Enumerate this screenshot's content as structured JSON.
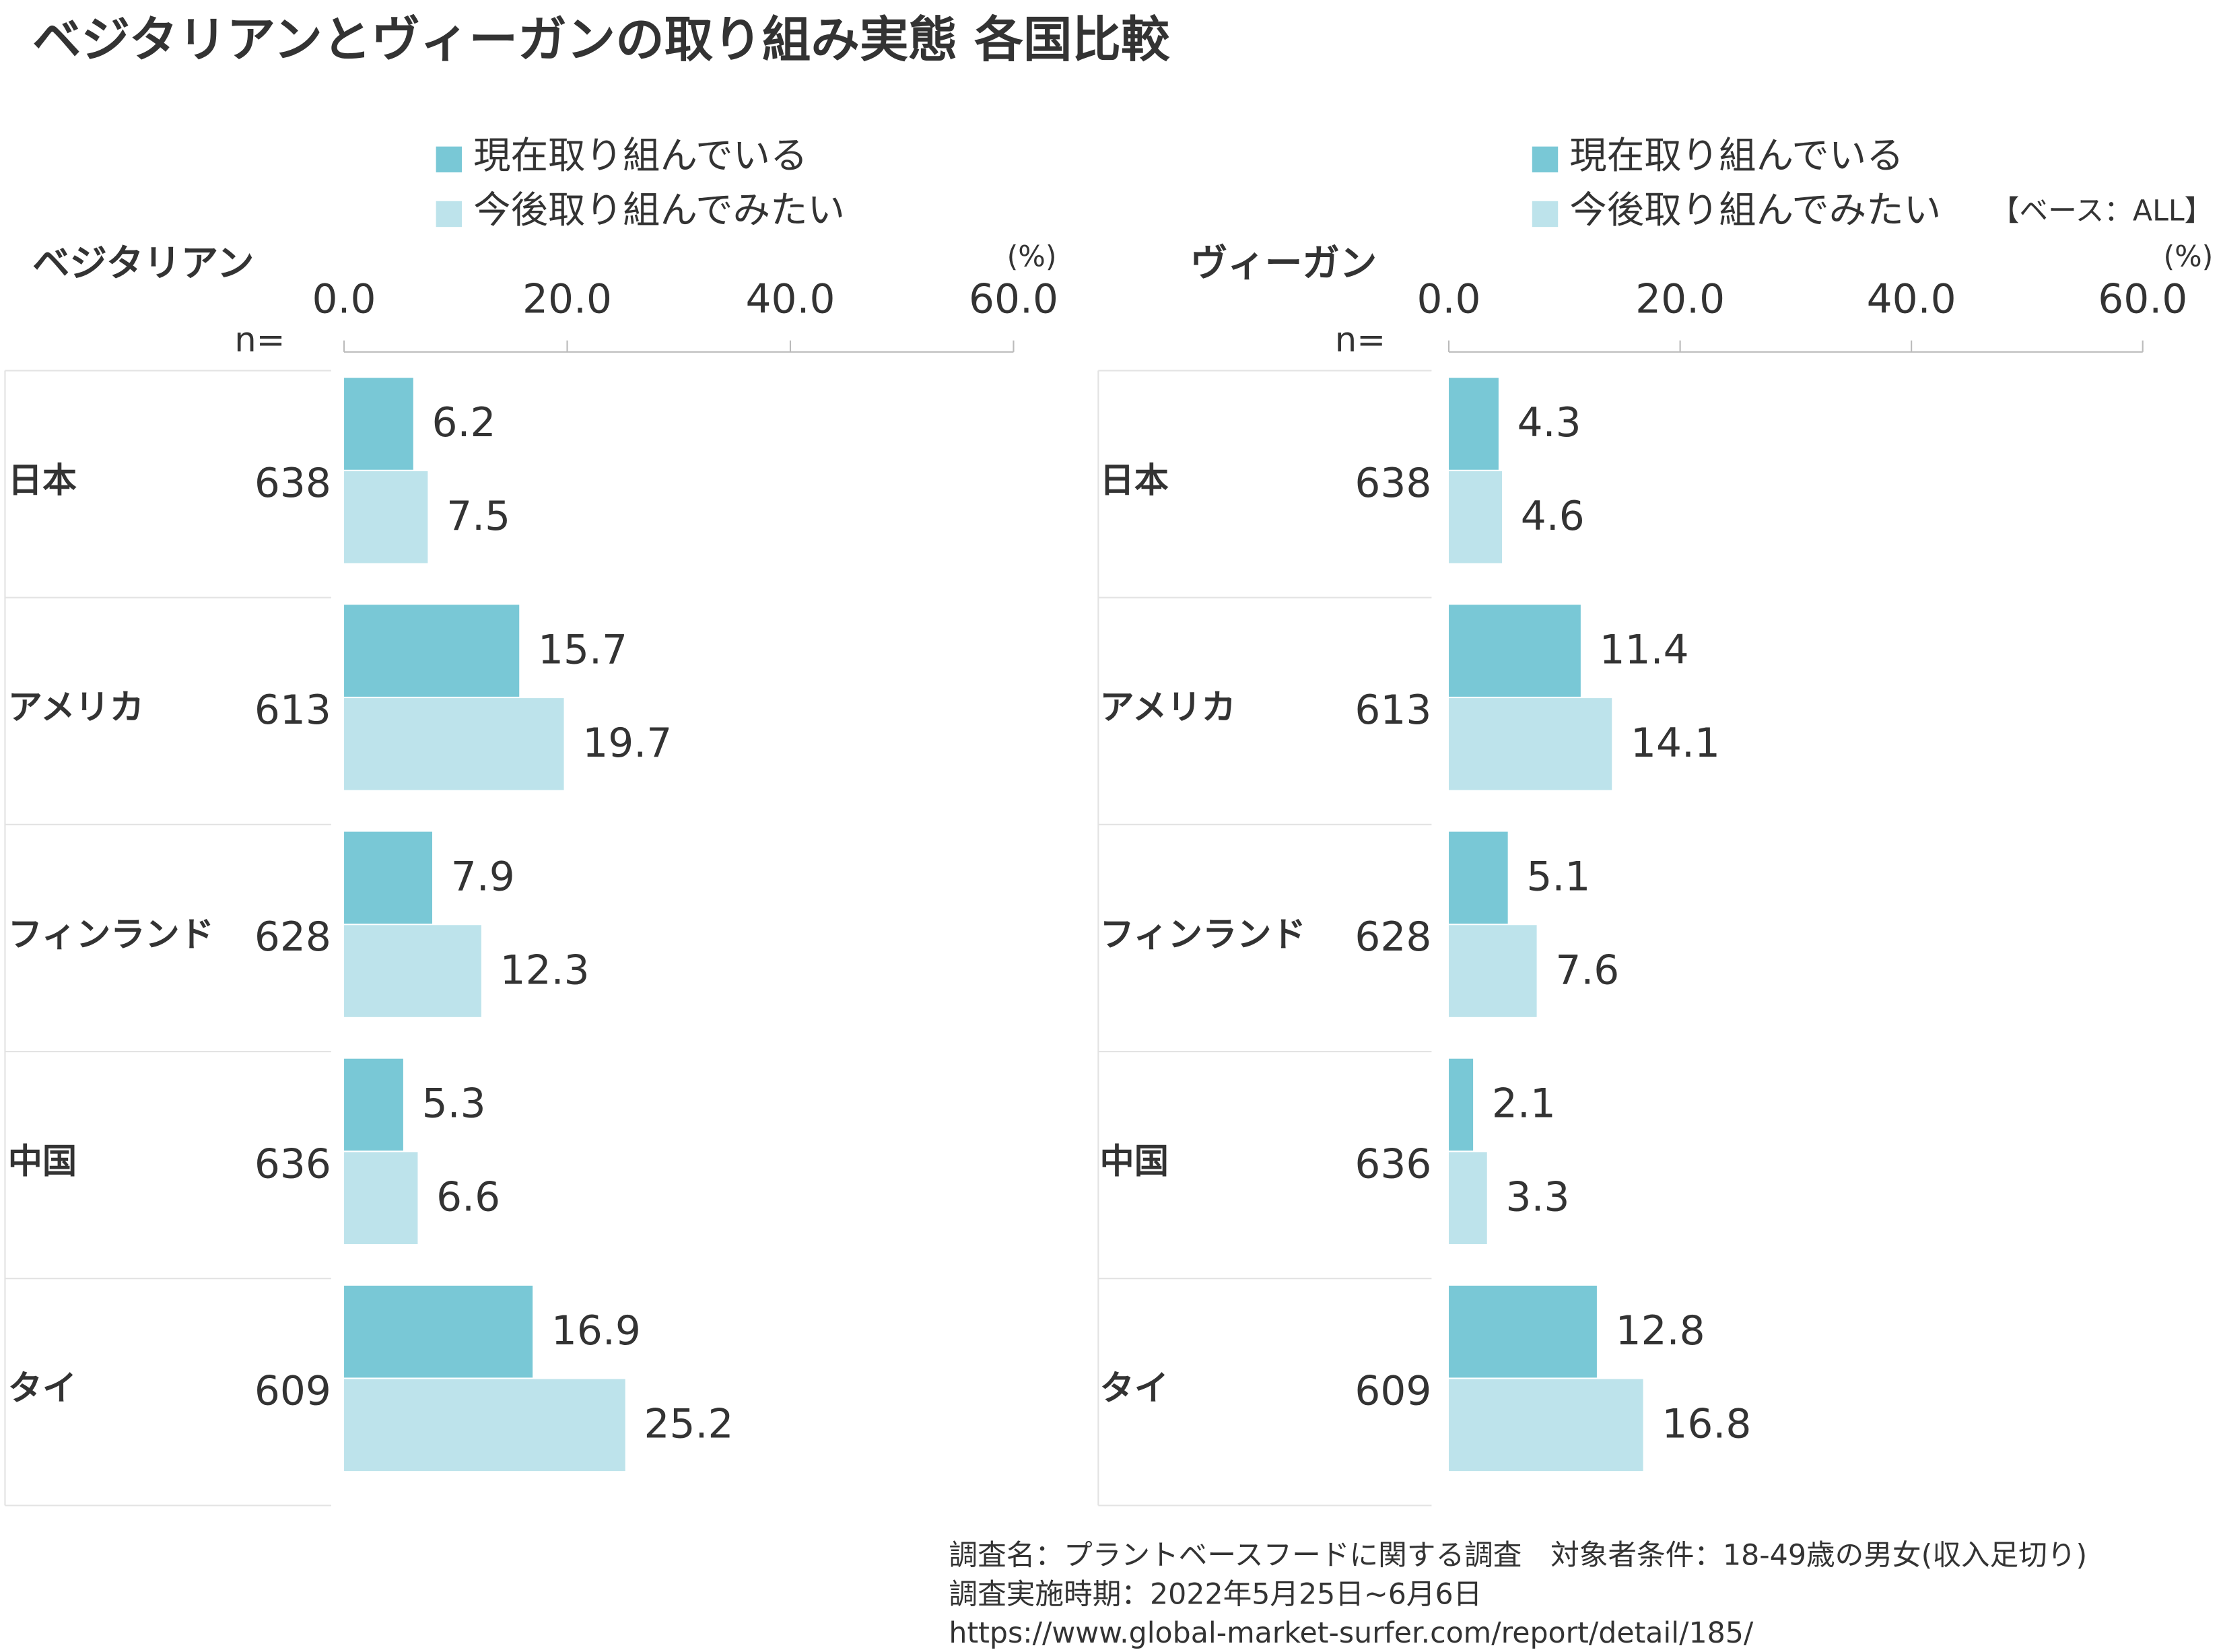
{
  "title": "ベジタリアンとヴィーガンの取り組み実態 各国比較",
  "base_note": "【ベース：ALL】",
  "notes": [
    "調査名：プラントベースフードに関する調査　対象者条件：18-49歳の男女(収入足切り)",
    "調査実施時期：2022年5月25日~6月6日",
    "https://www.global-market-surfer.com/report/detail/185/"
  ],
  "chart_data": [
    {
      "type": "bar",
      "title": "ベジタリアン",
      "unit": "(%)",
      "n_label": "n=",
      "categories": [
        "日本",
        "アメリカ",
        "フィンランド",
        "中国",
        "タイ"
      ],
      "n": [
        638,
        613,
        628,
        636,
        609
      ],
      "series": [
        {
          "name": "現在取り組んでいる",
          "color": "#79c8d6",
          "values": [
            6.2,
            15.7,
            7.9,
            5.3,
            16.9
          ]
        },
        {
          "name": "今後取り組んでみたい",
          "color": "#bde3eb",
          "values": [
            7.5,
            19.7,
            12.3,
            6.6,
            25.2
          ]
        }
      ],
      "xlim": [
        0,
        60
      ],
      "xticks": [
        {
          "value": 0,
          "label": "0.0"
        },
        {
          "value": 20,
          "label": "20.0"
        },
        {
          "value": 40,
          "label": "40.0"
        },
        {
          "value": 60,
          "label": "60.0"
        }
      ]
    },
    {
      "type": "bar",
      "title": "ヴィーガン",
      "unit": "(%)",
      "n_label": "n=",
      "categories": [
        "日本",
        "アメリカ",
        "フィンランド",
        "中国",
        "タイ"
      ],
      "n": [
        638,
        613,
        628,
        636,
        609
      ],
      "series": [
        {
          "name": "現在取り組んでいる",
          "color": "#79c8d6",
          "values": [
            4.3,
            11.4,
            5.1,
            2.1,
            12.8
          ]
        },
        {
          "name": "今後取り組んでみたい",
          "color": "#bde3eb",
          "values": [
            4.6,
            14.1,
            7.6,
            3.3,
            16.8
          ]
        }
      ],
      "xlim": [
        0,
        60
      ],
      "xticks": [
        {
          "value": 0,
          "label": "0.0"
        },
        {
          "value": 20,
          "label": "20.0"
        },
        {
          "value": 40,
          "label": "40.0"
        },
        {
          "value": 60,
          "label": "60.0"
        }
      ]
    }
  ]
}
